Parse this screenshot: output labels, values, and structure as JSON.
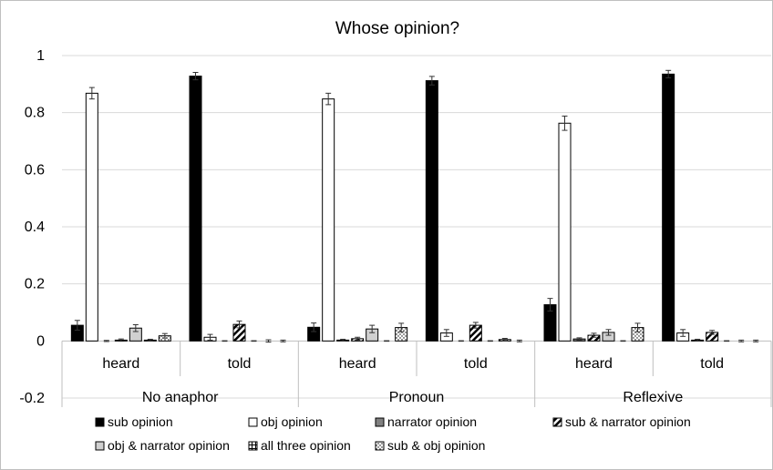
{
  "chart_data": {
    "type": "bar",
    "title": "Whose opinion?",
    "ylim": [
      -0.2,
      1
    ],
    "yticks": [
      "-0.2",
      "0",
      "0.2",
      "0.4",
      "0.6",
      "0.8",
      "1"
    ],
    "grid": true,
    "legend_position": "bottom",
    "groups": [
      {
        "label": "No anaphor",
        "subcategories": [
          "heard",
          "told"
        ]
      },
      {
        "label": "Pronoun",
        "subcategories": [
          "heard",
          "told"
        ]
      },
      {
        "label": "Reflexive",
        "subcategories": [
          "heard",
          "told"
        ]
      }
    ],
    "categories": [
      "heard",
      "told",
      "heard",
      "told",
      "heard",
      "told"
    ],
    "series": [
      {
        "name": "sub opinion",
        "pattern": "solid-black",
        "values": [
          0.055,
          0.928,
          0.048,
          0.912,
          0.127,
          0.935
        ],
        "errors": [
          0.017,
          0.013,
          0.015,
          0.015,
          0.022,
          0.013
        ]
      },
      {
        "name": "obj opinion",
        "pattern": "white",
        "values": [
          0.868,
          0.013,
          0.848,
          0.028,
          0.763,
          0.028
        ],
        "errors": [
          0.02,
          0.01,
          0.02,
          0.012,
          0.025,
          0.012
        ]
      },
      {
        "name": "narrator opinion",
        "pattern": "gray",
        "values": [
          0.0,
          0.0,
          0.003,
          0.0,
          0.007,
          0.003
        ],
        "errors": [
          0.002,
          0.001,
          0.003,
          0.001,
          0.004,
          0.003
        ]
      },
      {
        "name": "sub & narrator opinion",
        "pattern": "diagonal-stripe",
        "values": [
          0.003,
          0.058,
          0.008,
          0.055,
          0.02,
          0.03
        ],
        "errors": [
          0.004,
          0.012,
          0.005,
          0.01,
          0.007,
          0.007
        ]
      },
      {
        "name": "obj & narrator opinion",
        "pattern": "light-gray",
        "values": [
          0.045,
          0.0,
          0.042,
          0.0,
          0.03,
          0.0
        ],
        "errors": [
          0.012,
          0.001,
          0.013,
          0.001,
          0.01,
          0.001
        ]
      },
      {
        "name": "all three opinion",
        "pattern": "grid",
        "values": [
          0.003,
          0.0,
          0.0,
          0.005,
          0.0,
          0.0
        ],
        "errors": [
          0.003,
          0.004,
          0.001,
          0.004,
          0.001,
          0.003
        ]
      },
      {
        "name": "sub & obj opinion",
        "pattern": "dotted",
        "values": [
          0.018,
          0.0,
          0.047,
          0.0,
          0.047,
          0.0
        ],
        "errors": [
          0.008,
          0.003,
          0.015,
          0.003,
          0.015,
          0.003
        ]
      }
    ]
  }
}
